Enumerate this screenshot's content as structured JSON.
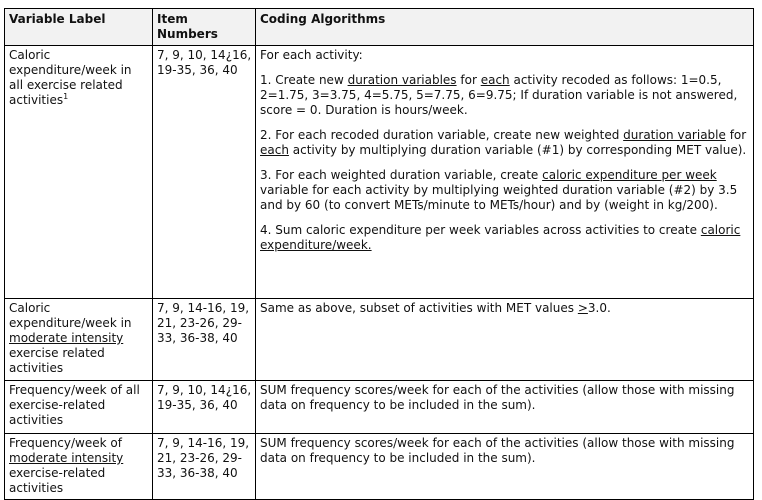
{
  "headers": {
    "variable_label": "Variable Label",
    "item_numbers": "Item Numbers",
    "coding_algorithms": "Coding Algorithms"
  },
  "rows": [
    {
      "label": "Caloric expenditure/week in all exercise related activities",
      "label_sup": "1",
      "items": "7, 9, 10, 14¿16, 19-35, 36, 40",
      "coding": {
        "intro": "For each activity:",
        "step1": {
          "a": "1. Create new ",
          "b": "duration variables",
          "c": " for ",
          "d": "each",
          "e": " activity recoded as follows: 1=0.5, 2=1.75, 3=3.75, 4=5.75, 5=7.75, 6=9.75; If duration variable is not answered, score = 0. Duration is hours/week."
        },
        "step2": {
          "a": "2. For each recoded duration variable, create new weighted ",
          "b": "duration variable",
          "c": " for ",
          "d": "each",
          "e": " activity by multiplying duration variable (#1) by corresponding MET value)."
        },
        "step3": {
          "a": "3. For each weighted duration variable, create ",
          "b": "caloric expenditure per week",
          "c": " variable for each activity by multiplying weighted duration variable (#2) by 3.5 and by 60 (to convert METs/minute to METs/hour) and by (weight in kg/200)."
        },
        "step4": {
          "a": "4. Sum caloric expenditure per week variables across activities to create ",
          "b": "caloric expenditure/week."
        }
      }
    },
    {
      "label_a": "Caloric expenditure/week in ",
      "label_b": "moderate intensity",
      "label_c": " exercise related activities",
      "items": "7, 9, 14-16, 19, 21, 23-26, 29-33, 36-38, 40",
      "coding_a": "Same as above, subset of activities with MET values ",
      "coding_b": ">",
      "coding_c": "3.0."
    },
    {
      "label": "Frequency/week of all exercise-related activities",
      "items": "7, 9, 10, 14¿16, 19-35, 36, 40",
      "coding": "SUM frequency scores/week for each of the activities (allow those with missing data on frequency to be included in the sum)."
    },
    {
      "label_a": "Frequency/week of ",
      "label_b": "moderate intensity",
      "label_c": " exercise-related activities",
      "items": "7, 9, 14-16, 19, 21, 23-26, 29-33, 36-38, 40",
      "coding": "SUM frequency scores/week for each of the activities (allow those with missing data on frequency to be included in the sum)."
    }
  ]
}
